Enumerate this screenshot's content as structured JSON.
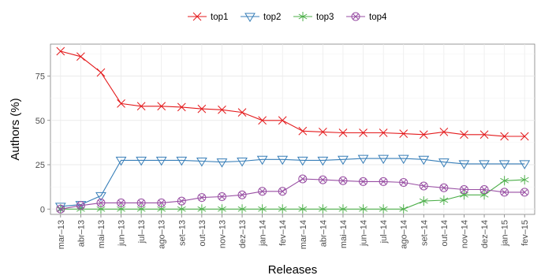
{
  "chart_data": {
    "type": "line",
    "xlabel": "Releases",
    "ylabel": "Authors (%)",
    "ylim": [
      -3,
      93
    ],
    "yticks": [
      0,
      25,
      50,
      75
    ],
    "grid": true,
    "legend_position": "top",
    "categories": [
      "mar–13",
      "abr–13",
      "mai–13",
      "jun–13",
      "jul–13",
      "ago–13",
      "set–13",
      "out–13",
      "nov–13",
      "dez–13",
      "jan–14",
      "fev–14",
      "mar–14",
      "abr–14",
      "mai–14",
      "jun–14",
      "jul–14",
      "ago–14",
      "set–14",
      "out–14",
      "nov–14",
      "dez–14",
      "jan–15",
      "fev–15"
    ],
    "series": [
      {
        "name": "top1",
        "color": "#e41a1c",
        "marker": "x",
        "values": [
          89,
          86,
          77,
          59.5,
          58,
          58,
          57.5,
          56.5,
          56,
          54.5,
          50,
          50,
          44,
          43.5,
          43,
          43,
          43,
          42.5,
          42,
          43.5,
          42,
          42,
          41,
          41
        ]
      },
      {
        "name": "top2",
        "color": "#377eb8",
        "marker": "triangle-down",
        "values": [
          1.5,
          2.5,
          7.5,
          27.5,
          27.5,
          27.5,
          27.5,
          27,
          26.5,
          27,
          28,
          28,
          27.5,
          27.5,
          28,
          28.5,
          28.5,
          28.5,
          28,
          26.5,
          25.5,
          25.5,
          25.5,
          25.5
        ]
      },
      {
        "name": "top3",
        "color": "#4daf4a",
        "marker": "asterisk",
        "values": [
          0,
          0,
          0,
          0,
          0,
          0,
          0,
          0,
          0,
          0,
          0,
          0,
          0,
          0,
          0,
          0,
          0,
          0,
          4.5,
          5,
          8,
          8,
          16,
          16.5
        ]
      },
      {
        "name": "top4",
        "color": "#984ea3",
        "marker": "circle-x",
        "values": [
          0,
          2,
          3.5,
          3.5,
          3.5,
          3.5,
          4.5,
          6.5,
          7,
          8,
          10,
          10,
          17,
          16.5,
          16,
          15.5,
          15.5,
          15,
          13,
          12,
          11,
          11,
          9.5,
          9.5
        ]
      }
    ]
  }
}
